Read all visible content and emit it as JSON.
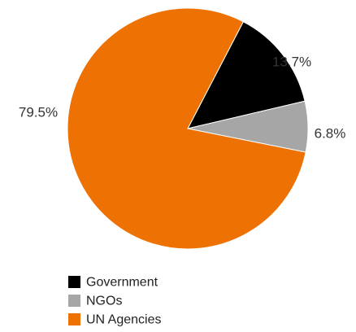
{
  "chart_data": {
    "type": "pie",
    "slices": [
      {
        "name": "Government",
        "value": 13.7,
        "label": "13.7%",
        "color": "#000000"
      },
      {
        "name": "NGOs",
        "value": 6.8,
        "label": "6.8%",
        "color": "#a6a6a6"
      },
      {
        "name": "UN Agencies",
        "value": 79.5,
        "label": "79.5%",
        "color": "#ee7203"
      }
    ],
    "legend_position": "bottom-left",
    "title": ""
  }
}
